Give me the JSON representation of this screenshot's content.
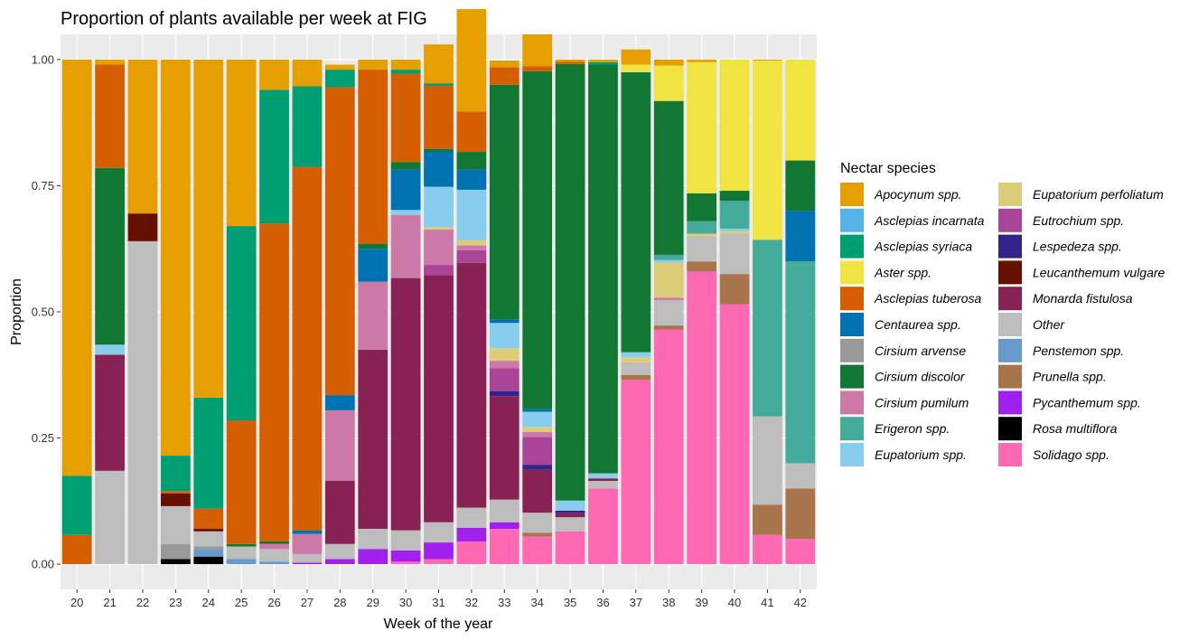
{
  "chart_data": {
    "type": "bar",
    "stacked": true,
    "title": "Proportion of plants available per week at FIG",
    "xlabel": "Week of the year",
    "ylabel": "Proportion",
    "ylim": [
      -0.05,
      1.05
    ],
    "yticks": [
      "0.00",
      "0.25",
      "0.50",
      "0.75",
      "1.00"
    ],
    "grid": true,
    "legend_title": "Nectar species",
    "legend_position": "right",
    "categories": [
      "20",
      "21",
      "22",
      "23",
      "24",
      "25",
      "26",
      "27",
      "28",
      "29",
      "30",
      "31",
      "32",
      "33",
      "34",
      "35",
      "36",
      "37",
      "38",
      "39",
      "40",
      "41",
      "42"
    ],
    "series": [
      {
        "name": "Solidago spp.",
        "color": "#FF69B4",
        "values": [
          0,
          0,
          0,
          0,
          0,
          0,
          0,
          0,
          0,
          0,
          0.005,
          0.01,
          0.045,
          0.07,
          0.055,
          0.065,
          0.15,
          0.365,
          0.465,
          0.58,
          0.515,
          0.058,
          0.05
        ]
      },
      {
        "name": "Rosa multiflora",
        "color": "#000000",
        "values": [
          0,
          0,
          0,
          0.01,
          0.015,
          0,
          0,
          0,
          0,
          0,
          0,
          0,
          0,
          0,
          0,
          0,
          0,
          0,
          0,
          0,
          0,
          0,
          0
        ]
      },
      {
        "name": "Pycanthemum spp.",
        "color": "#A020F0",
        "values": [
          0,
          0,
          0,
          0,
          0,
          0,
          0,
          0.003,
          0.01,
          0.03,
          0.022,
          0.033,
          0.027,
          0.013,
          0,
          0,
          0,
          0,
          0,
          0,
          0,
          0,
          0
        ]
      },
      {
        "name": "Prunella spp.",
        "color": "#A8744A",
        "values": [
          0,
          0,
          0,
          0,
          0,
          0,
          0,
          0,
          0,
          0,
          0,
          0,
          0,
          0,
          0.007,
          0,
          0,
          0.01,
          0.008,
          0.02,
          0.06,
          0.06,
          0.1
        ]
      },
      {
        "name": "Penstemon spp.",
        "color": "#6699CC",
        "values": [
          0,
          0,
          0,
          0,
          0.015,
          0.01,
          0.005,
          0,
          0,
          0,
          0,
          0,
          0,
          0,
          0,
          0,
          0,
          0,
          0,
          0,
          0,
          0,
          0
        ]
      },
      {
        "name": "Cirsium arvense",
        "color": "#999999",
        "values": [
          0,
          0,
          0,
          0.03,
          0.005,
          0,
          0,
          0,
          0,
          0,
          0,
          0,
          0,
          0,
          0,
          0,
          0,
          0,
          0,
          0,
          0,
          0,
          0
        ]
      },
      {
        "name": "Other",
        "color": "#BDBDBD",
        "values": [
          0,
          0.185,
          0.64,
          0.075,
          0.03,
          0.025,
          0.025,
          0.017,
          0.03,
          0.04,
          0.04,
          0.04,
          0.04,
          0.045,
          0.04,
          0.028,
          0.015,
          0.025,
          0.05,
          0.05,
          0.08,
          0.175,
          0.05
        ]
      },
      {
        "name": "Leucanthemum vulgare",
        "color": "#661100",
        "values": [
          0,
          0,
          0.055,
          0.025,
          0.005,
          0,
          0,
          0,
          0,
          0,
          0,
          0,
          0,
          0,
          0,
          0,
          0,
          0,
          0,
          0,
          0,
          0,
          0
        ]
      },
      {
        "name": "Monarda fistulosa",
        "color": "#882255",
        "values": [
          0,
          0.23,
          0,
          0,
          0,
          0,
          0,
          0,
          0.125,
          0.355,
          0.5,
          0.49,
          0.485,
          0.205,
          0.085,
          0.008,
          0.005,
          0,
          0,
          0,
          0,
          0,
          0
        ]
      },
      {
        "name": "Lespedeza spp.",
        "color": "#332288",
        "values": [
          0,
          0,
          0,
          0,
          0,
          0,
          0,
          0,
          0,
          0,
          0,
          0,
          0,
          0.01,
          0.01,
          0.005,
          0,
          0,
          0,
          0,
          0,
          0,
          0
        ]
      },
      {
        "name": "Eutrochium spp.",
        "color": "#AA4499",
        "values": [
          0,
          0,
          0,
          0,
          0,
          0,
          0,
          0,
          0,
          0,
          0,
          0.02,
          0.025,
          0.045,
          0.055,
          0,
          0,
          0,
          0,
          0,
          0,
          0,
          0
        ]
      },
      {
        "name": "Cirsium pumilum",
        "color": "#CC79A7",
        "values": [
          0,
          0,
          0,
          0,
          0,
          0,
          0.01,
          0.04,
          0.14,
          0.135,
          0.125,
          0.07,
          0.01,
          0.015,
          0.01,
          0,
          0,
          0,
          0.005,
          0,
          0,
          0,
          0
        ]
      },
      {
        "name": "Eupatorium perfoliatum",
        "color": "#DDCC77",
        "values": [
          0,
          0,
          0,
          0,
          0,
          0,
          0,
          0,
          0,
          0,
          0,
          0.005,
          0.01,
          0.025,
          0.01,
          0,
          0,
          0.01,
          0.07,
          0.005,
          0.005,
          0,
          0
        ]
      },
      {
        "name": "Eupatorium spp.",
        "color": "#88CCEE",
        "values": [
          0,
          0.02,
          0,
          0,
          0,
          0,
          0,
          0,
          0,
          0,
          0.01,
          0.08,
          0.1,
          0.05,
          0.03,
          0.02,
          0.01,
          0.01,
          0.005,
          0,
          0.005,
          0,
          0
        ]
      },
      {
        "name": "Erigeron spp.",
        "color": "#44AA99",
        "values": [
          0,
          0,
          0,
          0,
          0,
          0,
          0,
          0,
          0,
          0,
          0,
          0,
          0,
          0,
          0,
          0,
          0,
          0,
          0.01,
          0.025,
          0.055,
          0.35,
          0.4
        ]
      },
      {
        "name": "Centaurea spp.",
        "color": "#0072B2",
        "values": [
          0,
          0,
          0,
          0,
          0,
          0,
          0,
          0.007,
          0.03,
          0.065,
          0.08,
          0.07,
          0.04,
          0.007,
          0.005,
          0,
          0,
          0,
          0,
          0,
          0,
          0,
          0.1
        ]
      },
      {
        "name": "Cirsium discolor",
        "color": "#117733",
        "values": [
          0,
          0.35,
          0,
          0,
          0,
          0.005,
          0.005,
          0,
          0,
          0.01,
          0.015,
          0.005,
          0.035,
          0.465,
          0.67,
          0.865,
          0.81,
          0.555,
          0.305,
          0.055,
          0.02,
          0,
          0.1
        ]
      },
      {
        "name": "Asclepias tuberosa",
        "color": "#D55E00",
        "values": [
          0.058,
          0.205,
          0,
          0.005,
          0.04,
          0.245,
          0.63,
          0.72,
          0.61,
          0.345,
          0.175,
          0.125,
          0.08,
          0.035,
          0.01,
          0.005,
          0,
          0,
          0,
          0,
          0,
          0,
          0
        ]
      },
      {
        "name": "Asclepias syriaca",
        "color": "#009E73",
        "values": [
          0.117,
          0,
          0,
          0.07,
          0.22,
          0.385,
          0.265,
          0.16,
          0.035,
          0,
          0.008,
          0.005,
          0,
          0,
          0,
          0,
          0.005,
          0,
          0,
          0,
          0,
          0,
          0
        ]
      },
      {
        "name": "Aster spp.",
        "color": "#F0E442",
        "values": [
          0,
          0,
          0,
          0,
          0,
          0,
          0,
          0,
          0,
          0,
          0,
          0,
          0,
          0,
          0,
          0,
          0,
          0.015,
          0.07,
          0.26,
          0.26,
          0.355,
          0.2
        ]
      },
      {
        "name": "Apocynum spp.",
        "color": "#E69F00",
        "values": [
          0.825,
          0.01,
          0.305,
          0.785,
          0.67,
          0.33,
          0.06,
          0.053,
          0.01,
          0.02,
          0.02,
          0.077,
          0.203,
          0.013,
          0.063,
          0.004,
          0.005,
          0.03,
          0.012,
          0.005,
          0,
          0.002,
          0
        ]
      }
    ],
    "legend_order": [
      "Apocynum spp.",
      "Asclepias incarnata",
      "Asclepias syriaca",
      "Aster spp.",
      "Asclepias tuberosa",
      "Centaurea spp.",
      "Cirsium arvense",
      "Cirsium discolor",
      "Cirsium pumilum",
      "Erigeron spp.",
      "Eupatorium spp.",
      "Eupatorium perfoliatum",
      "Eutrochium spp.",
      "Lespedeza spp.",
      "Leucanthemum vulgare",
      "Monarda fistulosa",
      "Other",
      "Penstemon spp.",
      "Prunella spp.",
      "Pycanthemum spp.",
      "Rosa multiflora",
      "Solidago spp."
    ],
    "legend_colors": {
      "Apocynum spp.": "#E69F00",
      "Asclepias incarnata": "#56B4E9",
      "Asclepias syriaca": "#009E73",
      "Aster spp.": "#F0E442",
      "Asclepias tuberosa": "#D55E00",
      "Centaurea spp.": "#0072B2",
      "Cirsium arvense": "#999999",
      "Cirsium discolor": "#117733",
      "Cirsium pumilum": "#CC79A7",
      "Erigeron spp.": "#44AA99",
      "Eupatorium spp.": "#88CCEE",
      "Eupatorium perfoliatum": "#DDCC77",
      "Eutrochium spp.": "#AA4499",
      "Lespedeza spp.": "#332288",
      "Leucanthemum vulgare": "#661100",
      "Monarda fistulosa": "#882255",
      "Other": "#BDBDBD",
      "Penstemon spp.": "#6699CC",
      "Prunella spp.": "#A8744A",
      "Pycanthemum spp.": "#A020F0",
      "Rosa multiflora": "#000000",
      "Solidago spp.": "#FF69B4"
    }
  }
}
